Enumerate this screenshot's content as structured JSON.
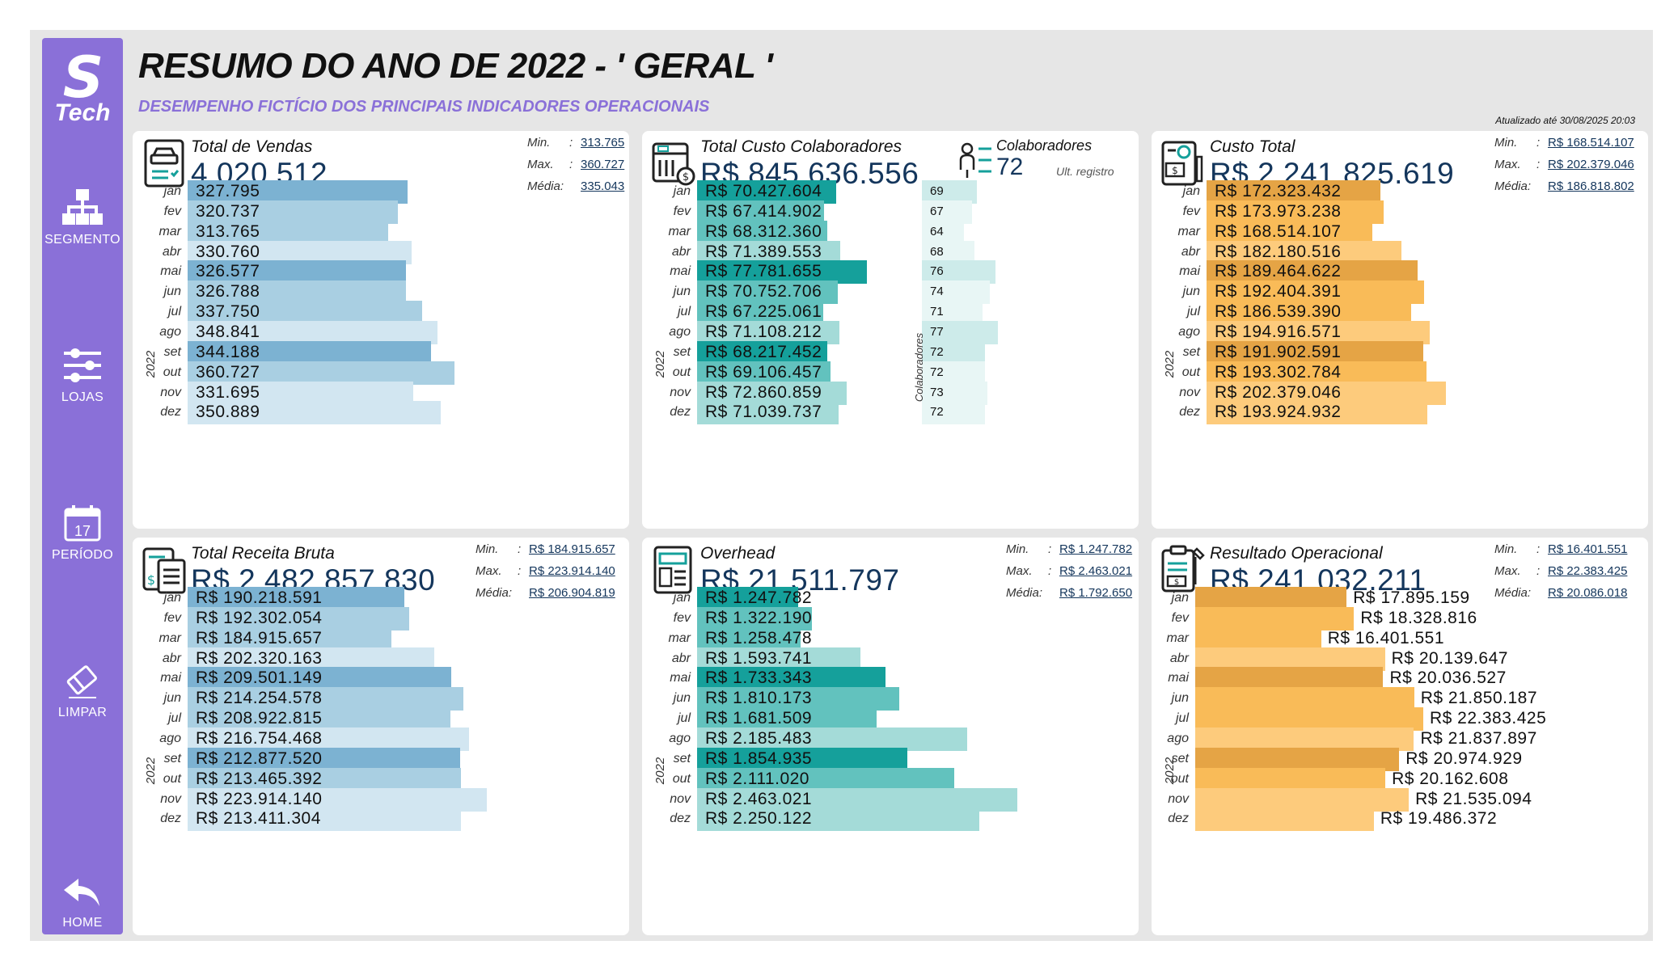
{
  "title": "RESUMO DO ANO DE 2022 - ' GERAL '",
  "subtitle": "DESEMPENHO FICTÍCIO DOS PRINCIPAIS INDICADORES OPERACIONAIS",
  "updated": "Atualizado até 30/08/2025 20:03",
  "logo": {
    "letter": "S",
    "name": "Tech"
  },
  "nav": [
    {
      "label": "SEGMENTO",
      "icon": "hierarchy-icon"
    },
    {
      "label": "LOJAS",
      "icon": "sliders-icon"
    },
    {
      "label": "PERÍODO",
      "icon": "calendar-icon",
      "day": "17"
    },
    {
      "label": "LIMPAR",
      "icon": "eraser-icon"
    },
    {
      "label": "HOME",
      "icon": "back-arrow-icon"
    }
  ],
  "months": [
    "jan",
    "fev",
    "mar",
    "abr",
    "mai",
    "jun",
    "jul",
    "ago",
    "set",
    "out",
    "nov",
    "dez"
  ],
  "year": "2022",
  "stat_keys": {
    "min": "Min.",
    "max": "Max.",
    "avg": "Média:",
    "sep": ":"
  },
  "cards": {
    "vendas": {
      "label": "Total de Vendas",
      "value": "4.020.512",
      "min": "313.765",
      "max": "360.727",
      "avg": "335.043",
      "values": [
        327795,
        320737,
        313765,
        330760,
        326577,
        326788,
        337750,
        348841,
        344188,
        360727,
        331695,
        350889
      ],
      "labels": [
        "327.795",
        "320.737",
        "313.765",
        "330.760",
        "326.577",
        "326.788",
        "337.750",
        "348.841",
        "344.188",
        "360.727",
        "331.695",
        "350.889"
      ]
    },
    "custo_colab": {
      "label": "Total Custo Colaboradores",
      "value": "R$ 845.636.556",
      "values": [
        70427604,
        67414902,
        68312360,
        71389553,
        77781655,
        70752706,
        67225061,
        71108212,
        68217452,
        69106457,
        72860859,
        71039737
      ],
      "labels": [
        "R$ 70.427.604",
        "R$ 67.414.902",
        "R$ 68.312.360",
        "R$ 71.389.553",
        "R$ 77.781.655",
        "R$ 70.752.706",
        "R$ 67.225.061",
        "R$ 71.108.212",
        "R$ 68.217.452",
        "R$ 69.106.457",
        "R$ 72.860.859",
        "R$ 71.039.737"
      ],
      "colab_title": "Colaboradores",
      "colab_value": "72",
      "colab_note": "Ult. registro",
      "colab_axis": "Colaboradores",
      "colab_values": [
        69,
        67,
        64,
        68,
        76,
        74,
        71,
        77,
        72,
        72,
        73,
        72
      ]
    },
    "custo_total": {
      "label": "Custo Total",
      "value": "R$ 2.241.825.619",
      "min": "R$ 168.514.107",
      "max": "R$ 202.379.046",
      "avg": "R$ 186.818.802",
      "values": [
        172323432,
        173973238,
        168514107,
        182180516,
        189464622,
        192404391,
        186539390,
        194916571,
        191902591,
        193302784,
        202379046,
        193924932
      ],
      "labels": [
        "R$ 172.323.432",
        "R$ 173.973.238",
        "R$ 168.514.107",
        "R$ 182.180.516",
        "R$ 189.464.622",
        "R$ 192.404.391",
        "R$ 186.539.390",
        "R$ 194.916.571",
        "R$ 191.902.591",
        "R$ 193.302.784",
        "R$ 202.379.046",
        "R$ 193.924.932"
      ]
    },
    "receita": {
      "label": "Total Receita Bruta",
      "value": "R$ 2.482.857.830",
      "min": "R$ 184.915.657",
      "max": "R$ 223.914.140",
      "avg": "R$ 206.904.819",
      "values": [
        190218591,
        192302054,
        184915657,
        202320163,
        209501149,
        214254578,
        208922815,
        216754468,
        212877520,
        213465392,
        223914140,
        213411304
      ],
      "labels": [
        "R$ 190.218.591",
        "R$ 192.302.054",
        "R$ 184.915.657",
        "R$ 202.320.163",
        "R$ 209.501.149",
        "R$ 214.254.578",
        "R$ 208.922.815",
        "R$ 216.754.468",
        "R$ 212.877.520",
        "R$ 213.465.392",
        "R$ 223.914.140",
        "R$ 213.411.304"
      ]
    },
    "overhead": {
      "label": "Overhead",
      "value": "R$ 21.511.797",
      "min": "R$ 1.247.782",
      "max": "R$ 2.463.021",
      "avg": "R$ 1.792.650",
      "values": [
        1247782,
        1322190,
        1258478,
        1593741,
        1733343,
        1810173,
        1681509,
        2185483,
        1854935,
        2111020,
        2463021,
        2250122
      ],
      "labels": [
        "R$ 1.247.782",
        "R$ 1.322.190",
        "R$ 1.258.478",
        "R$ 1.593.741",
        "R$ 1.733.343",
        "R$ 1.810.173",
        "R$ 1.681.509",
        "R$ 2.185.483",
        "R$ 1.854.935",
        "R$ 2.111.020",
        "R$ 2.463.021",
        "R$ 2.250.122"
      ]
    },
    "resultado": {
      "label": "Resultado Operacional",
      "value": "R$ 241.032.211",
      "min": "R$ 16.401.551",
      "max": "R$ 22.383.425",
      "avg": "R$ 20.086.018",
      "values": [
        17895159,
        18328816,
        16401551,
        20139647,
        20036527,
        21850187,
        22383425,
        21837897,
        20974929,
        20162608,
        21535094,
        19486372
      ],
      "labels": [
        "R$ 17.895.159",
        "R$ 18.328.816",
        "R$ 16.401.551",
        "R$ 20.139.647",
        "R$ 20.036.527",
        "R$ 21.850.187",
        "R$ 22.383.425",
        "R$ 21.837.897",
        "R$ 20.974.929",
        "R$ 20.162.608",
        "R$ 21.535.094",
        "R$ 19.486.372"
      ]
    }
  },
  "colors": {
    "blue_dark": "#7cb2d2",
    "blue_mid": "#a9cfe2",
    "blue_light": "#d2e6f1",
    "teal_dark": "#15a09b",
    "teal_mid": "#62c2be",
    "teal_light": "#a4dbd8",
    "orange_dark": "#e5a445",
    "orange_mid": "#f9bb58",
    "orange_light": "#fdcb7c",
    "colab_dark": "#cdebea",
    "colab_light": "#e8f6f5"
  }
}
